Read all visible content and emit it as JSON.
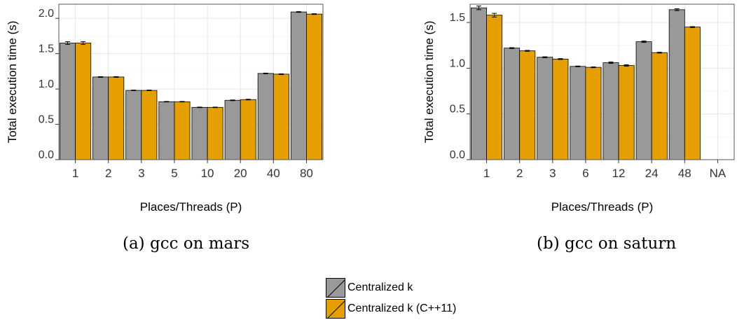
{
  "colors": {
    "gray": "#999999",
    "orange": "#E69F00",
    "grid": "#e6e6e6",
    "frame": "#555555"
  },
  "legend": [
    {
      "name": "Centralized k",
      "color": "#999999"
    },
    {
      "name": "Centralized k (C++11)",
      "color": "#E69F00"
    }
  ],
  "chart_data": [
    {
      "type": "bar",
      "caption": "(a) gcc on mars",
      "xlabel": "Places/Threads (P)",
      "ylabel": "Total execution time (s)",
      "ylim": [
        0,
        2.2
      ],
      "yticks": [
        "0.0",
        "0.5",
        "1.0",
        "1.5",
        "2.0"
      ],
      "grid": true,
      "categories": [
        "1",
        "2",
        "3",
        "5",
        "10",
        "20",
        "40",
        "80"
      ],
      "series": [
        {
          "name": "Centralized k",
          "values": [
            1.65,
            1.17,
            0.98,
            0.82,
            0.74,
            0.84,
            1.22,
            2.09
          ],
          "errors": [
            0.02,
            0.005,
            0.004,
            0.004,
            0.004,
            0.005,
            0.005,
            0.005
          ]
        },
        {
          "name": "Centralized k (C++11)",
          "values": [
            1.65,
            1.17,
            0.98,
            0.82,
            0.74,
            0.85,
            1.21,
            2.06
          ],
          "errors": [
            0.02,
            0.005,
            0.004,
            0.004,
            0.004,
            0.005,
            0.005,
            0.005
          ]
        }
      ]
    },
    {
      "type": "bar",
      "caption": "(b) gcc on saturn",
      "xlabel": "Places/Threads (P)",
      "ylabel": "Total execution time (s)",
      "ylim": [
        0,
        1.7
      ],
      "yticks": [
        "0.0",
        "0.5",
        "1.0",
        "1.5"
      ],
      "grid": true,
      "categories": [
        "1",
        "2",
        "3",
        "6",
        "12",
        "24",
        "48",
        "NA"
      ],
      "series": [
        {
          "name": "Centralized k",
          "values": [
            1.66,
            1.22,
            1.12,
            1.02,
            1.06,
            1.29,
            1.64,
            null
          ],
          "errors": [
            0.02,
            0.005,
            0.005,
            0.004,
            0.008,
            0.008,
            0.01,
            null
          ]
        },
        {
          "name": "Centralized k (C++11)",
          "values": [
            1.58,
            1.19,
            1.1,
            1.01,
            1.03,
            1.17,
            1.45,
            null
          ],
          "errors": [
            0.02,
            0.005,
            0.005,
            0.004,
            0.008,
            0.005,
            0.005,
            null
          ]
        }
      ]
    }
  ]
}
